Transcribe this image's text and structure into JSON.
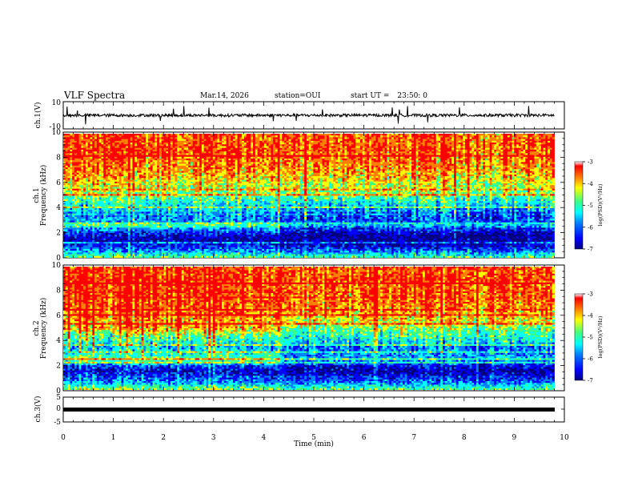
{
  "header": {
    "title": "VLF Spectra",
    "date": "Mar.14, 2026",
    "station_label": "station=",
    "station": "OUI",
    "start_label": "start UT =",
    "start_time": "23:50: 0"
  },
  "chart_data": [
    {
      "type": "line",
      "panel": "ch1-waveform",
      "ylabel": "ch.1(V)",
      "ylim": [
        -10,
        10
      ],
      "yticks": [
        "10",
        "-10"
      ],
      "description_values": {
        "baseline_v": 0,
        "typical_amplitude_v": 1.5,
        "max_spike_v": 7
      },
      "color": "#000000"
    },
    {
      "type": "heatmap",
      "panel": "ch1-spectrogram",
      "title": "ch.1",
      "ylabel": "Frequency (kHz)",
      "ylim": [
        0,
        10
      ],
      "yticks": [
        "0",
        "2",
        "4",
        "6",
        "8",
        "10"
      ],
      "xlim": [
        0,
        10
      ],
      "colorbar": {
        "label": "log(PSD)(V²/Hz)",
        "range": [
          -7,
          -3
        ],
        "ticks": [
          "-3",
          "-4",
          "-5",
          "-6",
          "-7"
        ]
      },
      "mean_log_psd_by_freq_khz": {
        "freq": [
          0.0,
          0.5,
          1.0,
          1.5,
          2.0,
          2.5,
          3.0,
          3.5,
          4.0,
          4.5,
          5.0,
          5.5,
          6.0,
          7.0,
          8.0,
          9.0,
          10.0
        ],
        "early_0_to_4min": [
          -4.6,
          -5.6,
          -6.2,
          -6.6,
          -6.2,
          -5.4,
          -5.6,
          -5.8,
          -5.4,
          -5.0,
          -4.7,
          -4.4,
          -4.2,
          -3.8,
          -3.6,
          -3.5,
          -3.5
        ],
        "late_4_to_10min": [
          -4.8,
          -5.8,
          -6.5,
          -6.8,
          -6.6,
          -6.0,
          -6.0,
          -6.1,
          -5.7,
          -5.2,
          -4.8,
          -4.5,
          -4.3,
          -3.9,
          -3.7,
          -3.6,
          -3.6
        ]
      }
    },
    {
      "type": "heatmap",
      "panel": "ch2-spectrogram",
      "title": "ch.2",
      "ylabel": "Frequency (kHz)",
      "ylim": [
        0,
        10
      ],
      "yticks": [
        "0",
        "2",
        "4",
        "6",
        "8",
        "10"
      ],
      "xlim": [
        0,
        10
      ],
      "colorbar": {
        "label": "log(PSD)(V²/Hz)",
        "range": [
          -7,
          -3
        ],
        "ticks": [
          "-3",
          "-4",
          "-5",
          "-6",
          "-7"
        ]
      },
      "mean_log_psd_by_freq_khz": {
        "freq": [
          0.0,
          0.5,
          1.0,
          1.5,
          2.0,
          2.5,
          3.0,
          3.5,
          4.0,
          4.5,
          5.0,
          5.5,
          6.0,
          7.0,
          8.0,
          9.0,
          10.0
        ],
        "early_0_to_4min": [
          -4.5,
          -5.5,
          -6.1,
          -6.4,
          -6.0,
          -4.6,
          -5.2,
          -5.4,
          -5.0,
          -4.6,
          -3.9,
          -3.9,
          -3.7,
          -3.5,
          -3.4,
          -3.4,
          -3.4
        ],
        "late_4_to_10min": [
          -4.7,
          -5.6,
          -6.3,
          -6.6,
          -6.3,
          -5.6,
          -5.7,
          -5.8,
          -5.2,
          -4.9,
          -4.6,
          -4.3,
          -4.0,
          -3.7,
          -3.6,
          -3.5,
          -3.5
        ]
      }
    },
    {
      "type": "line",
      "panel": "ch3-waveform",
      "ylabel": "ch.3(V)",
      "ylim": [
        -5,
        5
      ],
      "yticks": [
        "5",
        "0",
        "-5"
      ],
      "description_values": {
        "baseline_v": 0
      },
      "color": "#000000"
    }
  ],
  "xaxis": {
    "label": "Time (min)",
    "ticks": [
      "0",
      "1",
      "2",
      "3",
      "4",
      "5",
      "6",
      "7",
      "8",
      "9",
      "10"
    ],
    "xlim": [
      0,
      10
    ],
    "data_end_min": 9.8
  },
  "colormap": [
    "#000080",
    "#0000ff",
    "#0080ff",
    "#00ffff",
    "#40ff80",
    "#ffff00",
    "#ff8000",
    "#ff0000",
    "#ffffff"
  ]
}
